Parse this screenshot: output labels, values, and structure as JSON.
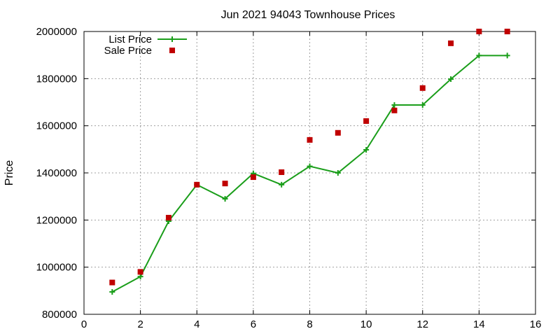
{
  "chart_data": {
    "type": "line",
    "title": "Jun 2021 94043 Townhouse Prices",
    "xlabel": "",
    "ylabel": "Price",
    "xlim": [
      0,
      16
    ],
    "ylim": [
      800000,
      2000000
    ],
    "xticks": [
      0,
      2,
      4,
      6,
      8,
      10,
      12,
      14,
      16
    ],
    "yticks": [
      800000,
      1000000,
      1200000,
      1400000,
      1600000,
      1800000,
      2000000
    ],
    "grid": true,
    "legend_position": "top-left",
    "series": [
      {
        "name": "List Price",
        "style": "line-with-plus-markers",
        "color": "#1a9e1a",
        "x": [
          1,
          2,
          3,
          4,
          5,
          6,
          7,
          8,
          9,
          10,
          11,
          12,
          13,
          14,
          15
        ],
        "y": [
          895000,
          960000,
          1195000,
          1350000,
          1290000,
          1398000,
          1350000,
          1428000,
          1400000,
          1498000,
          1688000,
          1688000,
          1798000,
          1898000,
          1898000
        ]
      },
      {
        "name": "Sale Price",
        "style": "square-points",
        "color": "#c00000",
        "x": [
          1,
          2,
          3,
          4,
          5,
          6,
          7,
          8,
          9,
          10,
          11,
          12,
          13,
          14,
          15
        ],
        "y": [
          935000,
          980000,
          1210000,
          1350000,
          1355000,
          1382000,
          1403000,
          1540000,
          1570000,
          1620000,
          1665000,
          1760000,
          1950000,
          2000000,
          2000000
        ]
      }
    ]
  }
}
